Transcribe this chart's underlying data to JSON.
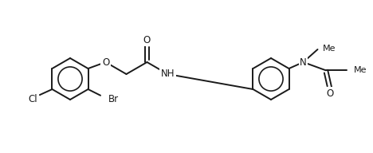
{
  "bg_color": "#ffffff",
  "line_color": "#1a1a1a",
  "line_width": 1.4,
  "font_size": 8.5,
  "ring_r": 26,
  "figsize": [
    4.68,
    1.92
  ],
  "dpi": 100,
  "atoms": {
    "Cl": "Cl",
    "Br": "Br",
    "O_ether": "O",
    "O_carbonyl1": "O",
    "NH": "NH",
    "N": "N",
    "O_carbonyl2": "O",
    "Me_N": "Me",
    "Me_ac": "Me"
  }
}
